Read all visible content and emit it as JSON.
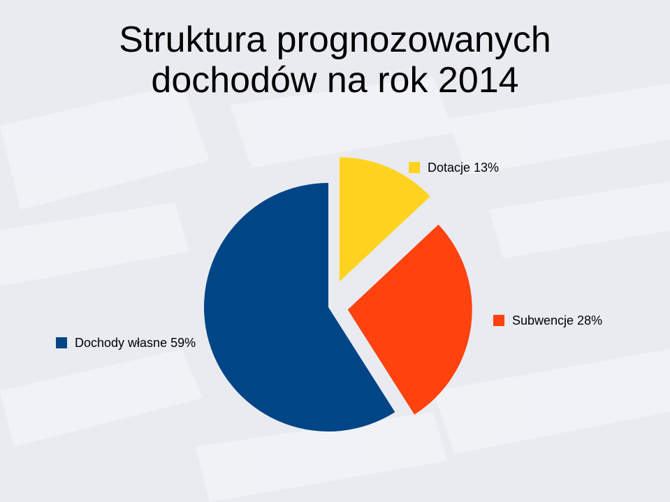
{
  "slide": {
    "title_line1": "Struktura prognozowanych",
    "title_line2": "dochodów na rok 2014"
  },
  "colors": {
    "background": "#e9ebf1",
    "background_stripes": "#f3f4f8"
  },
  "chart_data": {
    "type": "pie",
    "title": "",
    "legend": "labels next to slices",
    "exploded": true,
    "slices": [
      {
        "label": "Dochody własne 59%",
        "value": 59,
        "color": "#004586"
      },
      {
        "label": "Dotacje 13%",
        "value": 13,
        "color": "#ffd320"
      },
      {
        "label": "Subwencje 28%",
        "value": 28,
        "color": "#ff420e"
      }
    ]
  }
}
